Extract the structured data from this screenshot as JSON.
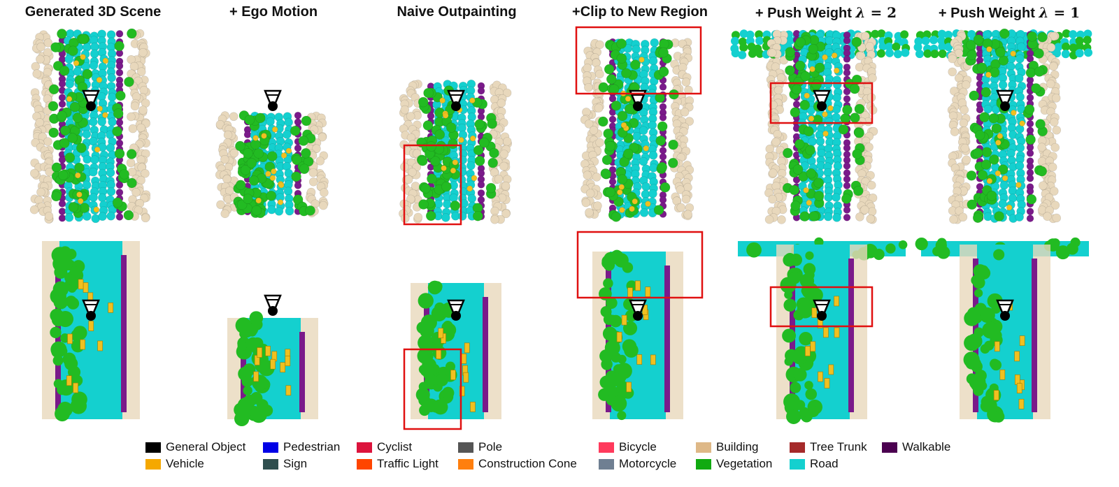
{
  "columns": [
    {
      "title": "Generated 3D Scene"
    },
    {
      "title": "+ Ego Motion"
    },
    {
      "title": "Naive Outpainting"
    },
    {
      "title": "+Clip to New Region"
    },
    {
      "title_prefix": "+ Push Weight ",
      "lambda": "λ",
      "eq": " = 2"
    },
    {
      "title_prefix": "+ Push Weight ",
      "lambda": "λ",
      "eq": " = 1"
    }
  ],
  "legend": [
    {
      "label": "General Object",
      "color": "#000000"
    },
    {
      "label": "Vehicle",
      "color": "#f5a800"
    },
    {
      "label": "Pedestrian",
      "color": "#0000e6"
    },
    {
      "label": "Sign",
      "color": "#2f4f4f"
    },
    {
      "label": "Cyclist",
      "color": "#dc143c"
    },
    {
      "label": "Traffic Light",
      "color": "#ff4500"
    },
    {
      "label": "Pole",
      "color": "#555555"
    },
    {
      "label": "Construction Cone",
      "color": "#ff7f0e"
    },
    {
      "label": "Bicycle",
      "color": "#ff3a5c"
    },
    {
      "label": "Motorcycle",
      "color": "#6f7f92"
    },
    {
      "label": "Building",
      "color": "#deb887"
    },
    {
      "label": "Vegetation",
      "color": "#11aa11"
    },
    {
      "label": "Tree Trunk",
      "color": "#a52a2a"
    },
    {
      "label": "Road",
      "color": "#14d0cf"
    },
    {
      "label": "Walkable",
      "color": "#4b0050"
    }
  ],
  "colors": {
    "road": "#14d0cf",
    "vegetation": "#22bb22",
    "building": "#e8d8bc",
    "walkable": "#7a1a8a",
    "vehicle": "#f0c020",
    "highlight_box": "#e01010"
  }
}
